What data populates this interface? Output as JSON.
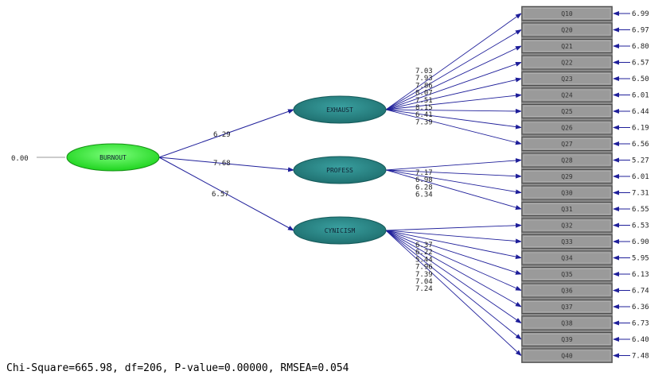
{
  "origin_value": "0.00",
  "exogenous": {
    "label": "BURNOUT"
  },
  "latents": [
    {
      "label": "EXHAUST",
      "path_coef": "6.29"
    },
    {
      "label": "PROFESS",
      "path_coef": "7.68"
    },
    {
      "label": "CYNICISM",
      "path_coef": "6.57"
    }
  ],
  "indicators": [
    {
      "label": "Q10",
      "error": "6.99"
    },
    {
      "label": "Q20",
      "error": "6.97"
    },
    {
      "label": "Q21",
      "error": "6.80"
    },
    {
      "label": "Q22",
      "error": "6.57"
    },
    {
      "label": "Q23",
      "error": "6.50"
    },
    {
      "label": "Q24",
      "error": "6.01"
    },
    {
      "label": "Q25",
      "error": "6.44"
    },
    {
      "label": "Q26",
      "error": "6.19"
    },
    {
      "label": "Q27",
      "error": "6.56"
    },
    {
      "label": "Q28",
      "error": "5.27"
    },
    {
      "label": "Q29",
      "error": "6.01"
    },
    {
      "label": "Q30",
      "error": "7.31"
    },
    {
      "label": "Q31",
      "error": "6.55"
    },
    {
      "label": "Q32",
      "error": "6.53"
    },
    {
      "label": "Q33",
      "error": "6.90"
    },
    {
      "label": "Q34",
      "error": "5.95"
    },
    {
      "label": "Q35",
      "error": "6.13"
    },
    {
      "label": "Q36",
      "error": "6.74"
    },
    {
      "label": "Q37",
      "error": "6.36"
    },
    {
      "label": "Q38",
      "error": "6.73"
    },
    {
      "label": "Q39",
      "error": "6.40"
    },
    {
      "label": "Q40",
      "error": "7.48"
    }
  ],
  "loadings": {
    "exhaust": [
      "7.03",
      "7.93",
      "7.86",
      "8.07",
      "7.51",
      "8.15",
      "6.41",
      "7.39"
    ],
    "profess": [
      "7.17",
      "6.98",
      "6.28",
      "6.34"
    ],
    "cynicism": [
      "6.37",
      "6.22",
      "5.44",
      "7.96",
      "7.39",
      "7.04",
      "7.24"
    ]
  },
  "fit_statistics": "Chi-Square=665.98, df=206, P-value=0.00000, RMSEA=0.054",
  "colors": {
    "exogenous_fill": "#33ee33",
    "latent_fill": "#2a8a8a",
    "box_fill": "#9a9a9a",
    "arrow": "#1f1f9a"
  }
}
